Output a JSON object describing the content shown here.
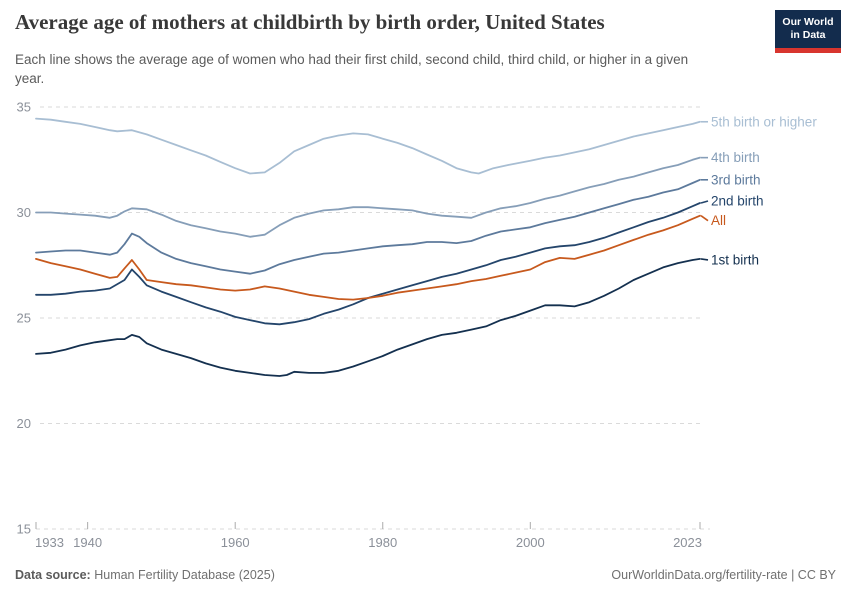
{
  "header": {
    "title": "Average age of mothers at childbirth by birth order, United States",
    "subtitle": "Each line shows the average age of women who had their first child, second child, third child, or higher in a given year.",
    "logo": {
      "line1": "Our World",
      "line2": "in Data",
      "bg_color": "#132c4d",
      "bar_color": "#d8352e"
    }
  },
  "footer": {
    "source_label": "Data source:",
    "source_value": "Human Fertility Database (2025)",
    "credit": "OurWorldinData.org/fertility-rate | CC BY"
  },
  "chart_data": {
    "type": "line",
    "title": "Average age of mothers at childbirth by birth order, United States",
    "xlabel": "",
    "ylabel": "",
    "x_axis": {
      "range": [
        1933,
        2023
      ],
      "ticks": [
        1933,
        1940,
        1960,
        1980,
        2000,
        2023
      ]
    },
    "y_axis": {
      "range": [
        15,
        35
      ],
      "ticks": [
        15,
        20,
        25,
        30,
        35
      ],
      "grid": "dashed"
    },
    "legend_position": "right-of-line-ends",
    "axis_text_color": "#8b9099",
    "grid_color": "#dadada",
    "tick_color": "#ababab",
    "series": [
      {
        "name": "5th birth or higher",
        "color": "#a8bed3",
        "label_dy": 0,
        "points": [
          [
            1933,
            34.45
          ],
          [
            1935,
            34.4
          ],
          [
            1937,
            34.3
          ],
          [
            1939,
            34.2
          ],
          [
            1941,
            34.05
          ],
          [
            1943,
            33.9
          ],
          [
            1944,
            33.85
          ],
          [
            1946,
            33.9
          ],
          [
            1948,
            33.7
          ],
          [
            1950,
            33.45
          ],
          [
            1952,
            33.2
          ],
          [
            1954,
            32.95
          ],
          [
            1956,
            32.7
          ],
          [
            1958,
            32.4
          ],
          [
            1960,
            32.1
          ],
          [
            1962,
            31.85
          ],
          [
            1964,
            31.9
          ],
          [
            1966,
            32.35
          ],
          [
            1968,
            32.9
          ],
          [
            1970,
            33.2
          ],
          [
            1972,
            33.5
          ],
          [
            1974,
            33.65
          ],
          [
            1976,
            33.75
          ],
          [
            1978,
            33.7
          ],
          [
            1980,
            33.5
          ],
          [
            1982,
            33.3
          ],
          [
            1984,
            33.05
          ],
          [
            1986,
            32.75
          ],
          [
            1988,
            32.45
          ],
          [
            1990,
            32.1
          ],
          [
            1992,
            31.9
          ],
          [
            1993,
            31.85
          ],
          [
            1995,
            32.1
          ],
          [
            1997,
            32.25
          ],
          [
            2000,
            32.45
          ],
          [
            2002,
            32.6
          ],
          [
            2004,
            32.7
          ],
          [
            2006,
            32.85
          ],
          [
            2008,
            33.0
          ],
          [
            2010,
            33.2
          ],
          [
            2012,
            33.4
          ],
          [
            2014,
            33.6
          ],
          [
            2016,
            33.75
          ],
          [
            2018,
            33.9
          ],
          [
            2020,
            34.05
          ],
          [
            2022,
            34.2
          ],
          [
            2023,
            34.3
          ]
        ]
      },
      {
        "name": "4th birth",
        "color": "#869eb8",
        "label_dy": 0,
        "points": [
          [
            1933,
            30.0
          ],
          [
            1935,
            30.0
          ],
          [
            1937,
            29.95
          ],
          [
            1939,
            29.9
          ],
          [
            1941,
            29.85
          ],
          [
            1943,
            29.75
          ],
          [
            1944,
            29.85
          ],
          [
            1945,
            30.05
          ],
          [
            1946,
            30.2
          ],
          [
            1948,
            30.15
          ],
          [
            1950,
            29.9
          ],
          [
            1952,
            29.6
          ],
          [
            1954,
            29.4
          ],
          [
            1956,
            29.25
          ],
          [
            1958,
            29.1
          ],
          [
            1960,
            29.0
          ],
          [
            1962,
            28.85
          ],
          [
            1964,
            28.95
          ],
          [
            1966,
            29.4
          ],
          [
            1968,
            29.75
          ],
          [
            1970,
            29.95
          ],
          [
            1972,
            30.1
          ],
          [
            1974,
            30.15
          ],
          [
            1976,
            30.25
          ],
          [
            1978,
            30.25
          ],
          [
            1980,
            30.2
          ],
          [
            1982,
            30.15
          ],
          [
            1984,
            30.1
          ],
          [
            1986,
            29.95
          ],
          [
            1988,
            29.85
          ],
          [
            1990,
            29.8
          ],
          [
            1992,
            29.75
          ],
          [
            1994,
            30.0
          ],
          [
            1996,
            30.2
          ],
          [
            1998,
            30.3
          ],
          [
            2000,
            30.45
          ],
          [
            2002,
            30.65
          ],
          [
            2004,
            30.8
          ],
          [
            2006,
            31.0
          ],
          [
            2008,
            31.2
          ],
          [
            2010,
            31.35
          ],
          [
            2012,
            31.55
          ],
          [
            2014,
            31.7
          ],
          [
            2016,
            31.9
          ],
          [
            2018,
            32.1
          ],
          [
            2020,
            32.25
          ],
          [
            2022,
            32.5
          ],
          [
            2023,
            32.6
          ]
        ]
      },
      {
        "name": "3rd birth",
        "color": "#5d7a9c",
        "label_dy": 0,
        "points": [
          [
            1933,
            28.1
          ],
          [
            1935,
            28.15
          ],
          [
            1937,
            28.2
          ],
          [
            1939,
            28.2
          ],
          [
            1941,
            28.1
          ],
          [
            1943,
            28.0
          ],
          [
            1944,
            28.1
          ],
          [
            1945,
            28.5
          ],
          [
            1946,
            29.0
          ],
          [
            1947,
            28.85
          ],
          [
            1948,
            28.55
          ],
          [
            1950,
            28.1
          ],
          [
            1952,
            27.8
          ],
          [
            1954,
            27.6
          ],
          [
            1956,
            27.45
          ],
          [
            1958,
            27.3
          ],
          [
            1960,
            27.2
          ],
          [
            1962,
            27.1
          ],
          [
            1964,
            27.25
          ],
          [
            1966,
            27.55
          ],
          [
            1968,
            27.75
          ],
          [
            1970,
            27.9
          ],
          [
            1972,
            28.05
          ],
          [
            1974,
            28.1
          ],
          [
            1976,
            28.2
          ],
          [
            1978,
            28.3
          ],
          [
            1980,
            28.4
          ],
          [
            1982,
            28.45
          ],
          [
            1984,
            28.5
          ],
          [
            1986,
            28.6
          ],
          [
            1988,
            28.6
          ],
          [
            1990,
            28.55
          ],
          [
            1992,
            28.65
          ],
          [
            1994,
            28.9
          ],
          [
            1996,
            29.1
          ],
          [
            1998,
            29.2
          ],
          [
            2000,
            29.3
          ],
          [
            2002,
            29.5
          ],
          [
            2004,
            29.65
          ],
          [
            2006,
            29.8
          ],
          [
            2008,
            30.0
          ],
          [
            2010,
            30.2
          ],
          [
            2012,
            30.4
          ],
          [
            2014,
            30.6
          ],
          [
            2016,
            30.75
          ],
          [
            2018,
            30.95
          ],
          [
            2020,
            31.1
          ],
          [
            2022,
            31.4
          ],
          [
            2023,
            31.55
          ]
        ]
      },
      {
        "name": "2nd birth",
        "color": "#24456b",
        "label_dy": -2,
        "points": [
          [
            1933,
            26.1
          ],
          [
            1935,
            26.1
          ],
          [
            1937,
            26.15
          ],
          [
            1939,
            26.25
          ],
          [
            1941,
            26.3
          ],
          [
            1943,
            26.4
          ],
          [
            1945,
            26.8
          ],
          [
            1946,
            27.3
          ],
          [
            1947,
            26.95
          ],
          [
            1948,
            26.55
          ],
          [
            1950,
            26.25
          ],
          [
            1952,
            26.0
          ],
          [
            1954,
            25.75
          ],
          [
            1956,
            25.5
          ],
          [
            1958,
            25.3
          ],
          [
            1960,
            25.05
          ],
          [
            1962,
            24.9
          ],
          [
            1964,
            24.75
          ],
          [
            1966,
            24.7
          ],
          [
            1968,
            24.8
          ],
          [
            1970,
            24.95
          ],
          [
            1972,
            25.2
          ],
          [
            1974,
            25.4
          ],
          [
            1976,
            25.65
          ],
          [
            1978,
            25.95
          ],
          [
            1980,
            26.15
          ],
          [
            1982,
            26.35
          ],
          [
            1984,
            26.55
          ],
          [
            1986,
            26.75
          ],
          [
            1988,
            26.95
          ],
          [
            1990,
            27.1
          ],
          [
            1992,
            27.3
          ],
          [
            1994,
            27.5
          ],
          [
            1996,
            27.75
          ],
          [
            1998,
            27.9
          ],
          [
            2000,
            28.1
          ],
          [
            2002,
            28.3
          ],
          [
            2004,
            28.4
          ],
          [
            2006,
            28.45
          ],
          [
            2008,
            28.6
          ],
          [
            2010,
            28.8
          ],
          [
            2012,
            29.05
          ],
          [
            2014,
            29.3
          ],
          [
            2016,
            29.55
          ],
          [
            2018,
            29.75
          ],
          [
            2020,
            30.0
          ],
          [
            2022,
            30.3
          ],
          [
            2023,
            30.45
          ]
        ]
      },
      {
        "name": "All",
        "color": "#c7591d",
        "label_dy": 5,
        "points": [
          [
            1933,
            27.8
          ],
          [
            1935,
            27.6
          ],
          [
            1937,
            27.45
          ],
          [
            1939,
            27.3
          ],
          [
            1941,
            27.1
          ],
          [
            1943,
            26.9
          ],
          [
            1944,
            26.95
          ],
          [
            1945,
            27.35
          ],
          [
            1946,
            27.75
          ],
          [
            1947,
            27.3
          ],
          [
            1948,
            26.8
          ],
          [
            1950,
            26.7
          ],
          [
            1952,
            26.6
          ],
          [
            1954,
            26.55
          ],
          [
            1956,
            26.45
          ],
          [
            1958,
            26.35
          ],
          [
            1960,
            26.3
          ],
          [
            1962,
            26.35
          ],
          [
            1964,
            26.5
          ],
          [
            1966,
            26.4
          ],
          [
            1968,
            26.25
          ],
          [
            1970,
            26.1
          ],
          [
            1972,
            26.0
          ],
          [
            1974,
            25.9
          ],
          [
            1976,
            25.87
          ],
          [
            1978,
            25.95
          ],
          [
            1980,
            26.05
          ],
          [
            1982,
            26.2
          ],
          [
            1984,
            26.3
          ],
          [
            1986,
            26.4
          ],
          [
            1988,
            26.5
          ],
          [
            1990,
            26.6
          ],
          [
            1992,
            26.75
          ],
          [
            1994,
            26.85
          ],
          [
            1996,
            27.0
          ],
          [
            1998,
            27.15
          ],
          [
            2000,
            27.3
          ],
          [
            2002,
            27.65
          ],
          [
            2004,
            27.85
          ],
          [
            2006,
            27.8
          ],
          [
            2008,
            28.0
          ],
          [
            2010,
            28.2
          ],
          [
            2012,
            28.45
          ],
          [
            2014,
            28.7
          ],
          [
            2016,
            28.95
          ],
          [
            2018,
            29.15
          ],
          [
            2020,
            29.4
          ],
          [
            2022,
            29.7
          ],
          [
            2023,
            29.85
          ]
        ]
      },
      {
        "name": "1st birth",
        "color": "#14304f",
        "label_dy": 1,
        "points": [
          [
            1933,
            23.3
          ],
          [
            1935,
            23.35
          ],
          [
            1937,
            23.5
          ],
          [
            1939,
            23.7
          ],
          [
            1941,
            23.85
          ],
          [
            1943,
            23.95
          ],
          [
            1944,
            24.0
          ],
          [
            1945,
            24.0
          ],
          [
            1946,
            24.2
          ],
          [
            1947,
            24.1
          ],
          [
            1948,
            23.8
          ],
          [
            1950,
            23.5
          ],
          [
            1952,
            23.3
          ],
          [
            1954,
            23.1
          ],
          [
            1956,
            22.85
          ],
          [
            1958,
            22.65
          ],
          [
            1960,
            22.5
          ],
          [
            1962,
            22.4
          ],
          [
            1964,
            22.3
          ],
          [
            1966,
            22.25
          ],
          [
            1967,
            22.3
          ],
          [
            1968,
            22.45
          ],
          [
            1970,
            22.4
          ],
          [
            1972,
            22.4
          ],
          [
            1974,
            22.5
          ],
          [
            1976,
            22.7
          ],
          [
            1978,
            22.95
          ],
          [
            1980,
            23.2
          ],
          [
            1982,
            23.5
          ],
          [
            1984,
            23.75
          ],
          [
            1986,
            24.0
          ],
          [
            1988,
            24.2
          ],
          [
            1990,
            24.3
          ],
          [
            1992,
            24.45
          ],
          [
            1994,
            24.6
          ],
          [
            1996,
            24.9
          ],
          [
            1998,
            25.1
          ],
          [
            2000,
            25.35
          ],
          [
            2002,
            25.6
          ],
          [
            2004,
            25.6
          ],
          [
            2006,
            25.55
          ],
          [
            2008,
            25.75
          ],
          [
            2010,
            26.05
          ],
          [
            2012,
            26.4
          ],
          [
            2014,
            26.8
          ],
          [
            2016,
            27.1
          ],
          [
            2018,
            27.4
          ],
          [
            2020,
            27.6
          ],
          [
            2022,
            27.75
          ],
          [
            2023,
            27.8
          ]
        ]
      }
    ]
  }
}
